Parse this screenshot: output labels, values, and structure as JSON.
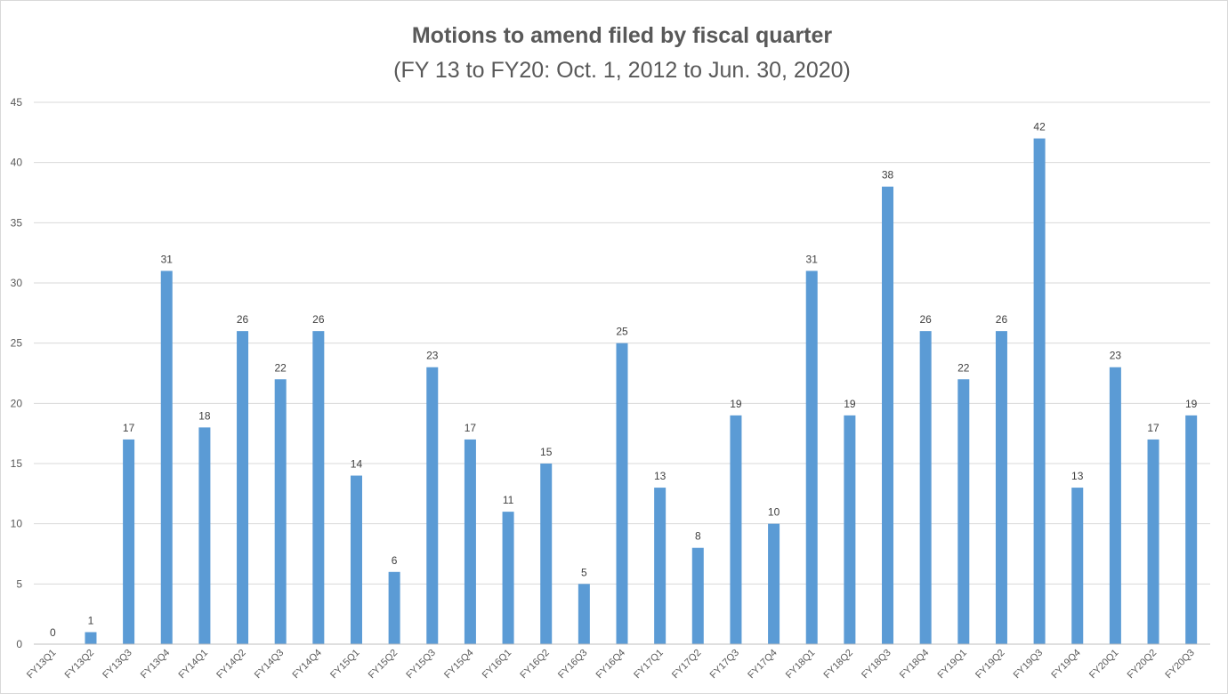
{
  "chart_data": {
    "type": "bar",
    "title": "Motions to amend filed by fiscal quarter",
    "subtitle": "(FY 13 to FY20: Oct. 1, 2012 to Jun. 30, 2020)",
    "xlabel": "",
    "ylabel": "",
    "ylim": [
      0,
      45
    ],
    "yticks": [
      0,
      5,
      10,
      15,
      20,
      25,
      30,
      35,
      40,
      45
    ],
    "grid": true,
    "legend": "none",
    "bar_color": "#5b9bd5",
    "categories": [
      "FY13Q1",
      "FY13Q2",
      "FY13Q3",
      "FY13Q4",
      "FY14Q1",
      "FY14Q2",
      "FY14Q3",
      "FY14Q4",
      "FY15Q1",
      "FY15Q2",
      "FY15Q3",
      "FY15Q4",
      "FY16Q1",
      "FY16Q2",
      "FY16Q3",
      "FY16Q4",
      "FY17Q1",
      "FY17Q2",
      "FY17Q3",
      "FY17Q4",
      "FY18Q1",
      "FY18Q2",
      "FY18Q3",
      "FY18Q4",
      "FY19Q1",
      "FY19Q2",
      "FY19Q3",
      "FY19Q4",
      "FY20Q1",
      "FY20Q2",
      "FY20Q3"
    ],
    "values": [
      0,
      1,
      17,
      31,
      18,
      26,
      22,
      26,
      14,
      6,
      23,
      17,
      11,
      15,
      5,
      25,
      13,
      8,
      19,
      10,
      31,
      19,
      38,
      26,
      22,
      26,
      42,
      13,
      23,
      17,
      19
    ]
  }
}
